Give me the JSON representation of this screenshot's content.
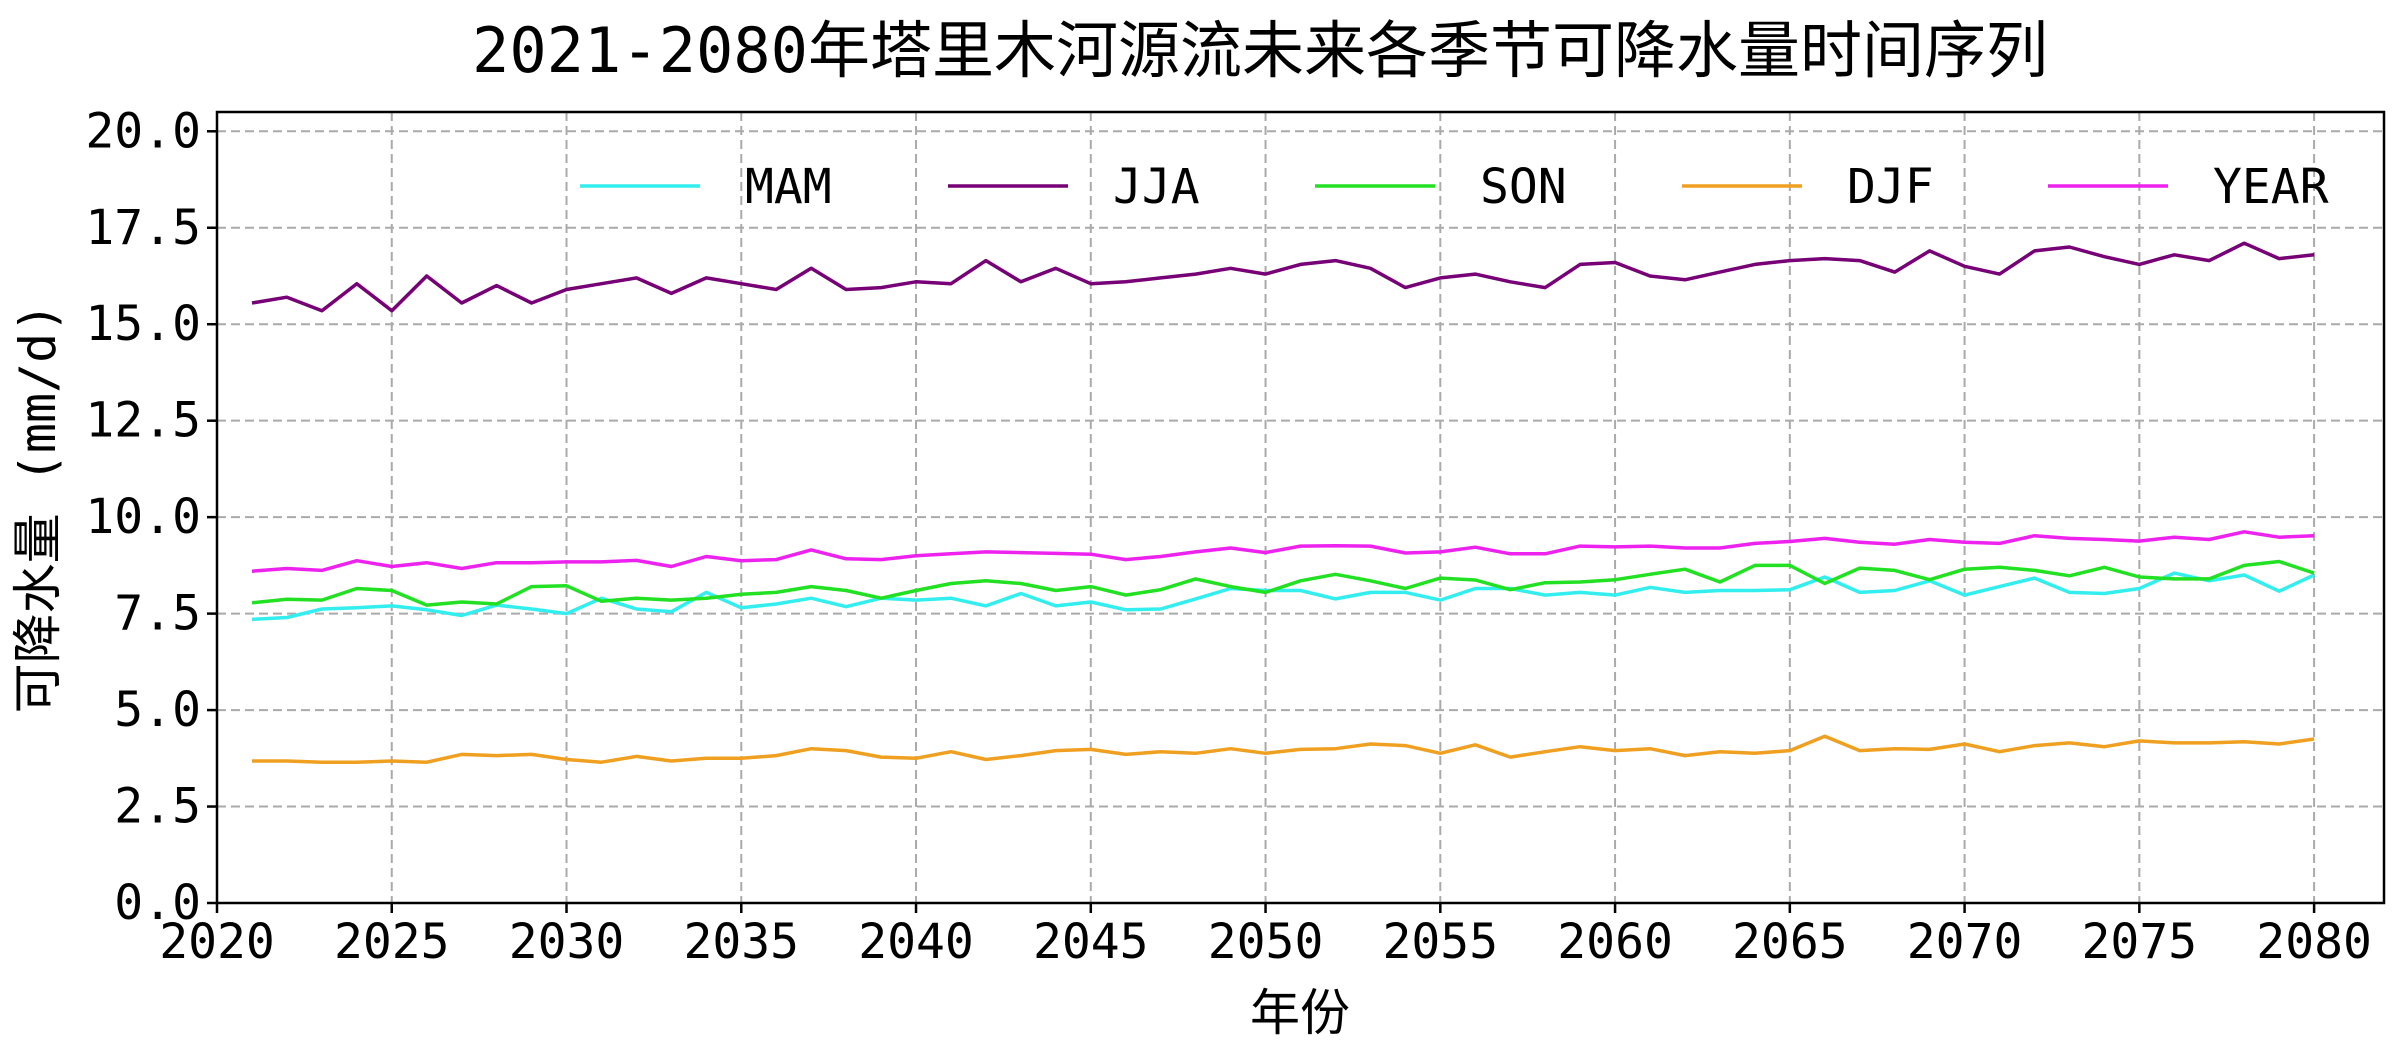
{
  "chart_data": {
    "type": "line",
    "title": "2021-2080年塔里木河源流未来各季节可降水量时间序列",
    "xlabel": "年份",
    "ylabel": "可降水量 (mm/d)",
    "xlim": [
      2020,
      2082
    ],
    "ylim": [
      0,
      20.5
    ],
    "xticks": [
      2020,
      2025,
      2030,
      2035,
      2040,
      2045,
      2050,
      2055,
      2060,
      2065,
      2070,
      2075,
      2080
    ],
    "yticks": [
      "0.0",
      "2.5",
      "5.0",
      "7.5",
      "10.0",
      "12.5",
      "15.0",
      "17.5",
      "20.0"
    ],
    "grid": true,
    "legend_position": "top-right",
    "x_start": 2021,
    "series": [
      {
        "name": "MAM",
        "color": "#33EEEE",
        "values": [
          7.35,
          7.4,
          7.62,
          7.65,
          7.7,
          7.6,
          7.45,
          7.72,
          7.62,
          7.5,
          7.9,
          7.62,
          7.55,
          8.05,
          7.65,
          7.75,
          7.9,
          7.68,
          7.9,
          7.85,
          7.9,
          7.7,
          8.02,
          7.7,
          7.8,
          7.6,
          7.62,
          7.88,
          8.15,
          8.1,
          8.1,
          7.88,
          8.05,
          8.05,
          7.85,
          8.15,
          8.15,
          7.98,
          8.05,
          7.98,
          8.18,
          8.05,
          8.1,
          8.1,
          8.12,
          8.45,
          8.05,
          8.1,
          8.35,
          7.98,
          8.2,
          8.42,
          8.05,
          8.02,
          8.15,
          8.55,
          8.35,
          8.5,
          8.08,
          8.5
        ]
      },
      {
        "name": "JJA",
        "color": "#770077",
        "values": [
          15.55,
          15.7,
          15.35,
          16.05,
          15.35,
          16.25,
          15.55,
          16.0,
          15.55,
          15.9,
          16.05,
          16.2,
          15.8,
          16.2,
          16.05,
          15.9,
          16.45,
          15.9,
          15.95,
          16.1,
          16.05,
          16.65,
          16.1,
          16.45,
          16.05,
          16.1,
          16.2,
          16.3,
          16.45,
          16.3,
          16.55,
          16.65,
          16.45,
          15.95,
          16.2,
          16.3,
          16.1,
          15.95,
          16.55,
          16.6,
          16.25,
          16.15,
          16.35,
          16.55,
          16.65,
          16.7,
          16.65,
          16.35,
          16.9,
          16.5,
          16.3,
          16.9,
          17.0,
          16.75,
          16.55,
          16.8,
          16.65,
          17.1,
          16.7,
          16.8
        ]
      },
      {
        "name": "SON",
        "color": "#22E022",
        "values": [
          7.78,
          7.87,
          7.85,
          8.15,
          8.1,
          7.72,
          7.8,
          7.75,
          8.2,
          8.22,
          7.82,
          7.9,
          7.85,
          7.9,
          8.0,
          8.05,
          8.2,
          8.1,
          7.9,
          8.1,
          8.28,
          8.35,
          8.28,
          8.1,
          8.2,
          7.98,
          8.12,
          8.4,
          8.2,
          8.05,
          8.35,
          8.52,
          8.35,
          8.15,
          8.42,
          8.37,
          8.12,
          8.3,
          8.32,
          8.38,
          8.52,
          8.65,
          8.32,
          8.75,
          8.75,
          8.28,
          8.68,
          8.62,
          8.38,
          8.65,
          8.7,
          8.62,
          8.48,
          8.7,
          8.45,
          8.4,
          8.4,
          8.75,
          8.85,
          8.55
        ]
      },
      {
        "name": "DJF",
        "color": "#F0A020",
        "values": [
          3.68,
          3.68,
          3.65,
          3.65,
          3.68,
          3.65,
          3.85,
          3.82,
          3.85,
          3.72,
          3.65,
          3.8,
          3.68,
          3.75,
          3.75,
          3.82,
          4.0,
          3.95,
          3.78,
          3.75,
          3.92,
          3.72,
          3.82,
          3.95,
          3.98,
          3.85,
          3.92,
          3.88,
          4.0,
          3.88,
          3.98,
          4.0,
          4.12,
          4.08,
          3.88,
          4.1,
          3.78,
          3.92,
          4.05,
          3.95,
          4.0,
          3.82,
          3.92,
          3.88,
          3.95,
          4.32,
          3.95,
          4.0,
          3.98,
          4.12,
          3.92,
          4.08,
          4.15,
          4.05,
          4.2,
          4.15,
          4.15,
          4.18,
          4.12,
          4.25
        ]
      },
      {
        "name": "YEAR",
        "color": "#EE22EE",
        "values": [
          8.6,
          8.67,
          8.62,
          8.87,
          8.72,
          8.82,
          8.67,
          8.82,
          8.82,
          8.84,
          8.84,
          8.88,
          8.72,
          8.98,
          8.87,
          8.9,
          9.15,
          8.92,
          8.9,
          9.0,
          9.05,
          9.1,
          9.08,
          9.06,
          9.04,
          8.9,
          8.98,
          9.1,
          9.2,
          9.08,
          9.25,
          9.26,
          9.25,
          9.07,
          9.1,
          9.22,
          9.05,
          9.05,
          9.25,
          9.23,
          9.25,
          9.2,
          9.2,
          9.32,
          9.37,
          9.45,
          9.35,
          9.3,
          9.42,
          9.35,
          9.32,
          9.52,
          9.45,
          9.42,
          9.38,
          9.48,
          9.42,
          9.62,
          9.48,
          9.52
        ]
      }
    ]
  }
}
